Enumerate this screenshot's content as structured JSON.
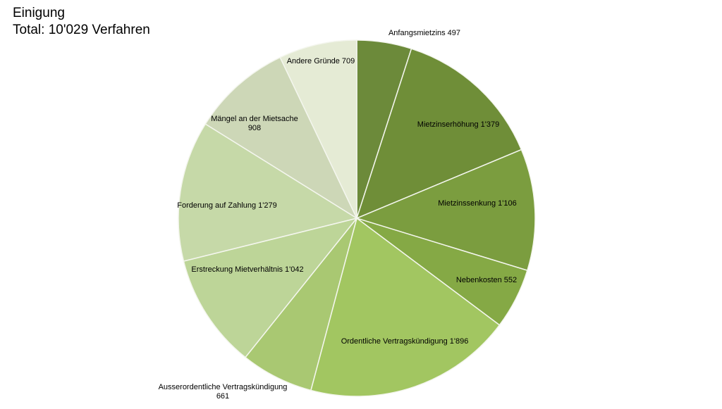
{
  "chart_data": {
    "type": "pie",
    "title": "Einigung",
    "subtitle": "Total: 10'029 Verfahren",
    "categories": [
      "Anfangsmietzins",
      "Mietzinserhöhung",
      "Mietzinssenkung",
      "Nebenkosten",
      "Ordentliche Vertragskündigung",
      "Ausserordentliche Vertragskündigung",
      "Erstreckung Mietverhältnis",
      "Forderung auf Zahlung",
      "Mängel an der Mietsache",
      "Andere Gründe"
    ],
    "values": [
      497,
      1379,
      1106,
      552,
      1896,
      661,
      1042,
      1279,
      908,
      709
    ],
    "value_labels": [
      "497",
      "1'379",
      "1'106",
      "552",
      "1'896",
      "661",
      "1'042",
      "1'279",
      "908",
      "709"
    ],
    "colors": [
      "#6c8a3a",
      "#6f8e38",
      "#7b9d3f",
      "#85a945",
      "#a2c661",
      "#a9c872",
      "#bdd598",
      "#c6d9a8",
      "#cdd7b7",
      "#e5ebd5"
    ]
  }
}
